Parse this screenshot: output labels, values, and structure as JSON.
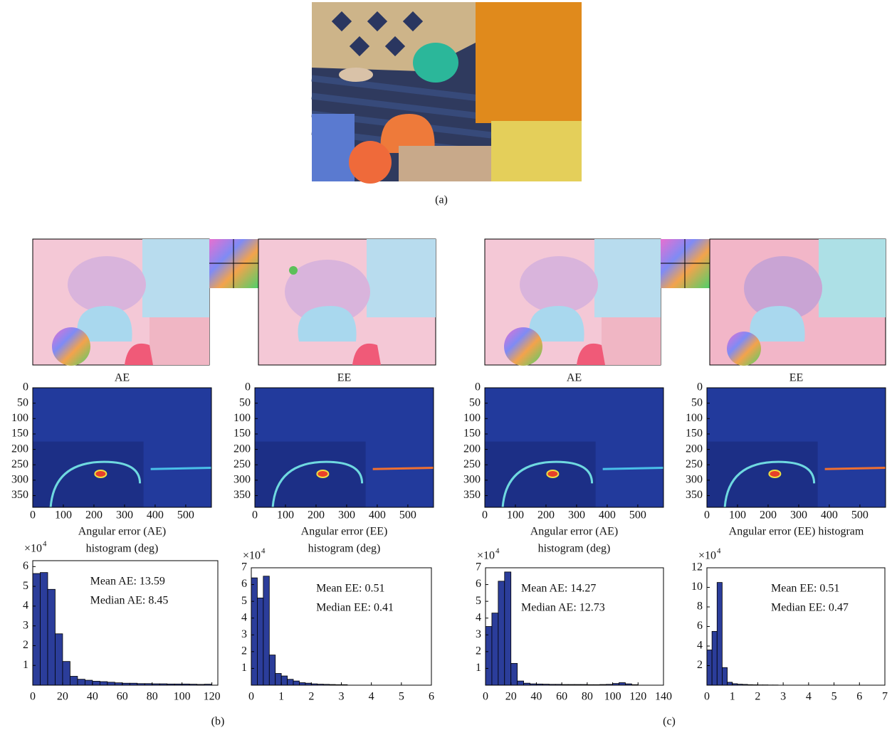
{
  "panel_labels": [
    "(a)",
    "(b)",
    "(c)"
  ],
  "chart_data": [
    {
      "type": "heatmap",
      "title": "AE",
      "xlim": [
        0,
        584
      ],
      "ylim": [
        0,
        388
      ],
      "xticks": [
        0,
        100,
        200,
        300,
        400,
        500
      ],
      "yticks": [
        0,
        50,
        100,
        150,
        200,
        250,
        300,
        350
      ]
    },
    {
      "type": "heatmap",
      "title": "EE",
      "xlim": [
        0,
        584
      ],
      "ylim": [
        0,
        388
      ],
      "xticks": [
        0,
        100,
        200,
        300,
        400,
        500
      ],
      "yticks": [
        0,
        50,
        100,
        150,
        200,
        250,
        300,
        350
      ]
    },
    {
      "type": "heatmap",
      "title": "AE",
      "xlim": [
        0,
        584
      ],
      "ylim": [
        0,
        388
      ],
      "xticks": [
        0,
        100,
        200,
        300,
        400,
        500
      ],
      "yticks": [
        0,
        50,
        100,
        150,
        200,
        250,
        300,
        350
      ]
    },
    {
      "type": "heatmap",
      "title": "EE",
      "xlim": [
        0,
        584
      ],
      "ylim": [
        0,
        388
      ],
      "xticks": [
        0,
        100,
        200,
        300,
        400,
        500
      ],
      "yticks": [
        0,
        50,
        100,
        150,
        200,
        250,
        300,
        350
      ]
    },
    {
      "type": "histogram",
      "title_lines": [
        "Angular error (AE)",
        "histogram (deg)"
      ],
      "y_multiplier": "×10",
      "y_multiplier_exponent": "4",
      "annotations": [
        "Mean AE: 13.59",
        "Median AE: 8.45"
      ],
      "color": "#2b3d9a",
      "bins": [
        0,
        5,
        10,
        15,
        20,
        25,
        30,
        35,
        40,
        45,
        50,
        55,
        60,
        65,
        70,
        75,
        80,
        85,
        90,
        95,
        100,
        105,
        110,
        115,
        120
      ],
      "values": [
        5.65,
        5.7,
        4.85,
        2.6,
        1.2,
        0.45,
        0.3,
        0.25,
        0.2,
        0.18,
        0.15,
        0.12,
        0.1,
        0.1,
        0.08,
        0.08,
        0.07,
        0.07,
        0.06,
        0.06,
        0.06,
        0.05,
        0.04,
        0.05
      ],
      "xlim": [
        0,
        124
      ],
      "ylim": [
        0,
        6.3
      ],
      "xticks": [
        0,
        20,
        40,
        60,
        80,
        100,
        120
      ],
      "yticks": [
        1,
        2,
        3,
        4,
        5,
        6
      ]
    },
    {
      "type": "histogram",
      "title_lines": [
        "Angular error (EE)",
        "histogram (deg)"
      ],
      "y_multiplier": "×10",
      "y_multiplier_exponent": "4",
      "annotations": [
        "Mean EE: 0.51",
        "Median EE: 0.41"
      ],
      "color": "#2b3d9a",
      "bins": [
        0,
        0.2,
        0.4,
        0.6,
        0.8,
        1,
        1.2,
        1.4,
        1.6,
        1.8,
        2,
        2.2,
        2.4,
        2.6,
        2.8,
        3,
        3.2
      ],
      "values": [
        6.4,
        5.2,
        6.5,
        1.8,
        0.7,
        0.55,
        0.35,
        0.25,
        0.15,
        0.12,
        0.08,
        0.06,
        0.05,
        0.04,
        0.03,
        0.03
      ],
      "xlim": [
        0,
        6
      ],
      "ylim": [
        0,
        7
      ],
      "xticks": [
        0,
        1,
        2,
        3,
        4,
        5,
        6
      ],
      "yticks": [
        1,
        2,
        3,
        4,
        5,
        6,
        7
      ]
    },
    {
      "type": "histogram",
      "title_lines": [
        "Angular error (AE)",
        "histogram (deg)"
      ],
      "y_multiplier": "×10",
      "y_multiplier_exponent": "4",
      "annotations": [
        "Mean AE: 14.27",
        "Median AE: 12.73"
      ],
      "color": "#2b3d9a",
      "bins": [
        0,
        5,
        10,
        15,
        20,
        25,
        30,
        35,
        40,
        45,
        50,
        55,
        60,
        65,
        70,
        75,
        80,
        85,
        90,
        95,
        100,
        105,
        110,
        115,
        120
      ],
      "values": [
        3.5,
        4.3,
        6.2,
        6.75,
        1.3,
        0.25,
        0.12,
        0.08,
        0.07,
        0.06,
        0.05,
        0.05,
        0.04,
        0.04,
        0.04,
        0.04,
        0.03,
        0.03,
        0.04,
        0.05,
        0.1,
        0.15,
        0.08,
        0.03
      ],
      "xlim": [
        0,
        140
      ],
      "ylim": [
        0,
        7
      ],
      "xticks": [
        0,
        20,
        40,
        60,
        80,
        100,
        120,
        140
      ],
      "yticks": [
        1,
        2,
        3,
        4,
        5,
        6,
        7
      ]
    },
    {
      "type": "histogram",
      "title_lines": [
        "Angular error (EE) histogram"
      ],
      "y_multiplier": "×10",
      "y_multiplier_exponent": "4",
      "annotations": [
        "Mean EE: 0.51",
        "Median EE: 0.47"
      ],
      "color": "#2b3d9a",
      "bins": [
        0,
        0.2,
        0.4,
        0.6,
        0.8,
        1,
        1.2,
        1.4,
        1.6,
        1.8,
        2,
        2.2,
        2.4,
        2.6,
        2.8
      ],
      "values": [
        3.6,
        5.5,
        10.5,
        1.8,
        0.3,
        0.15,
        0.1,
        0.08,
        0.05,
        0.04,
        0.03,
        0.03,
        0.02,
        0.02
      ],
      "xlim": [
        0,
        7
      ],
      "ylim": [
        0,
        12
      ],
      "xticks": [
        0,
        1,
        2,
        3,
        4,
        5,
        6,
        7
      ],
      "yticks": [
        2,
        4,
        6,
        8,
        10,
        12
      ]
    }
  ]
}
